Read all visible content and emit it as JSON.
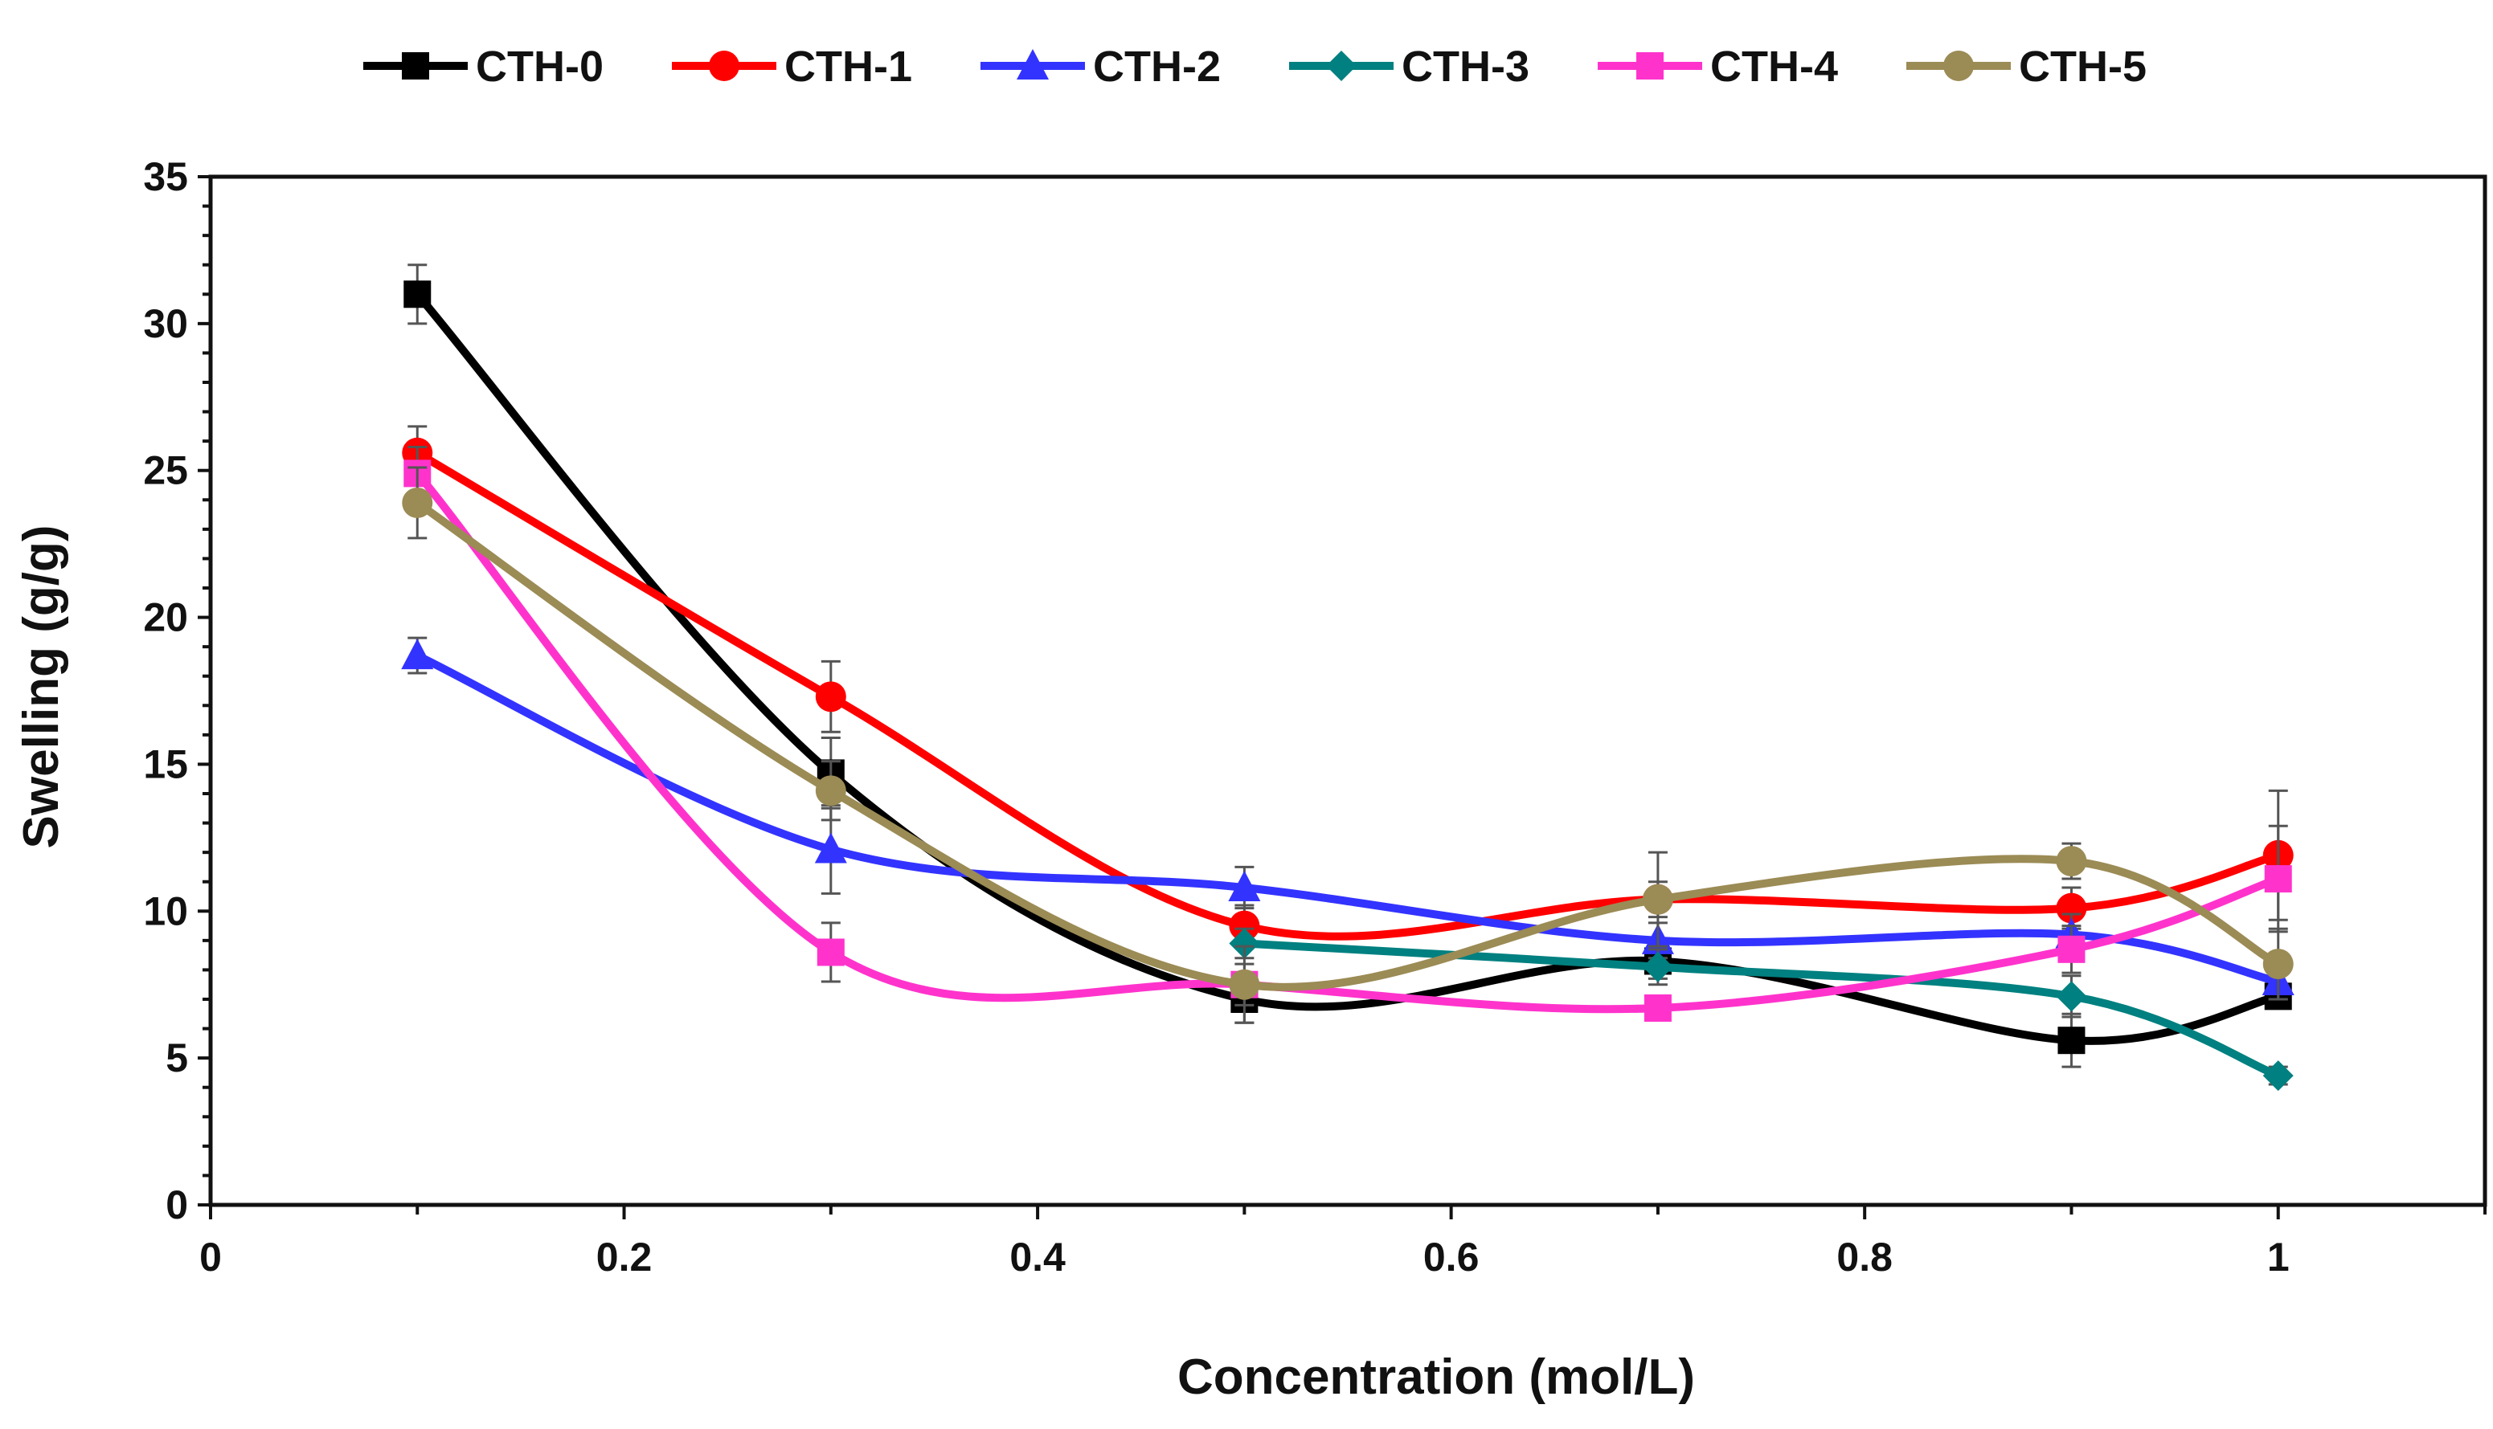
{
  "chart_data": {
    "type": "line",
    "title": "",
    "xlabel": "Concentration (mol/L)",
    "ylabel": "Swelling (g/g)",
    "xlim": [
      0,
      1.1
    ],
    "ylim": [
      0,
      35
    ],
    "xticks": [
      0,
      0.2,
      0.4,
      0.6,
      0.8,
      1
    ],
    "xtick_labels": [
      "0",
      "0.2",
      "0.4",
      "0.6",
      "0.8",
      "1"
    ],
    "yticks": [
      0,
      5,
      10,
      15,
      20,
      25,
      30,
      35
    ],
    "ytick_labels": [
      "0",
      "5",
      "10",
      "15",
      "20",
      "25",
      "30",
      "35"
    ],
    "grid": false,
    "legend_position": "top",
    "x": [
      0.1,
      0.3,
      0.5,
      0.7,
      0.9,
      1.0
    ],
    "series": [
      {
        "name": "CTH-0",
        "color": "#000000",
        "marker": "square",
        "values": [
          31.0,
          14.7,
          7.0,
          8.3,
          5.6,
          7.1
        ],
        "errors": [
          1.0,
          1.2,
          0.8,
          0.6,
          0.9,
          0.4
        ]
      },
      {
        "name": "CTH-1",
        "color": "#ff0000",
        "marker": "circle",
        "values": [
          25.6,
          17.3,
          9.5,
          10.4,
          10.1,
          11.9
        ],
        "errors": [
          0.9,
          1.2,
          0.7,
          0.6,
          0.7,
          2.2
        ]
      },
      {
        "name": "CTH-2",
        "color": "#3333ff",
        "marker": "triangle",
        "values": [
          18.7,
          12.1,
          10.8,
          9.0,
          9.2,
          7.6
        ],
        "errors": [
          0.6,
          1.5,
          0.7,
          0.6,
          0.7,
          0.6
        ]
      },
      {
        "name": "CTH-3",
        "color": "#008080",
        "marker": "diamond",
        "values": [
          null,
          null,
          8.9,
          8.1,
          7.1,
          4.4
        ],
        "errors": [
          null,
          null,
          0.5,
          0.6,
          0.7,
          0.3
        ]
      },
      {
        "name": "CTH-4",
        "color": "#ff33cc",
        "marker": "square",
        "values": [
          24.9,
          8.6,
          7.5,
          6.7,
          8.7,
          11.1
        ],
        "errors": [
          0.9,
          1.0,
          0.7,
          0.4,
          0.8,
          1.8
        ]
      },
      {
        "name": "CTH-5",
        "color": "#9b8b55",
        "marker": "circle",
        "values": [
          23.9,
          14.1,
          7.5,
          10.4,
          11.7,
          8.2
        ],
        "errors": [
          1.2,
          1.0,
          1.3,
          1.6,
          0.6,
          1.2
        ]
      }
    ]
  }
}
